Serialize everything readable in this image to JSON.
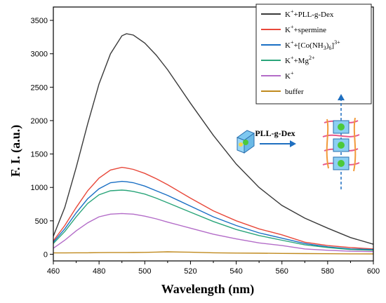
{
  "chart_data": {
    "type": "line",
    "xlabel": "Wavelength (nm)",
    "ylabel": "F. I. (a.u.)",
    "xlim": [
      460,
      600
    ],
    "ylim": [
      -100,
      3700
    ],
    "xticks": [
      460,
      480,
      500,
      520,
      540,
      560,
      580,
      600
    ],
    "yticks": [
      0,
      500,
      1000,
      1500,
      2000,
      2500,
      3000,
      3500
    ],
    "legend_position": "top-right",
    "x": [
      460,
      465,
      470,
      475,
      480,
      485,
      490,
      492,
      495,
      500,
      505,
      510,
      520,
      530,
      540,
      550,
      560,
      570,
      580,
      590,
      600
    ],
    "series": [
      {
        "legend_base": "K",
        "legend_sup1": "+",
        "legend_rest": "+PLL-g-Dex",
        "color": "#3a3a3a",
        "values": [
          270,
          700,
          1300,
          1950,
          2550,
          3000,
          3270,
          3300,
          3280,
          3160,
          2980,
          2760,
          2260,
          1780,
          1350,
          1000,
          730,
          540,
          390,
          250,
          150
        ]
      },
      {
        "legend_base": "K",
        "legend_sup1": "+",
        "legend_rest": "+spermine",
        "color": "#e8483a",
        "values": [
          200,
          430,
          700,
          950,
          1140,
          1260,
          1300,
          1290,
          1270,
          1210,
          1130,
          1040,
          840,
          650,
          500,
          380,
          290,
          180,
          130,
          100,
          80
        ]
      },
      {
        "legend_base": "K",
        "legend_sup1": "+",
        "legend_rest": "+[Co(NH",
        "legend_sub": "3",
        "legend_rest2": ")",
        "legend_sup_a": "6",
        "legend_rest3": "]",
        "legend_sup_b": "3+",
        "color": "#1a6fc4",
        "values": [
          180,
          380,
          620,
          830,
          980,
          1070,
          1090,
          1085,
          1070,
          1020,
          950,
          880,
          720,
          560,
          430,
          320,
          240,
          160,
          110,
          80,
          70
        ]
      },
      {
        "legend_base": "K",
        "legend_sup1": "+",
        "legend_rest": "+Mg",
        "legend_sup2": "2+",
        "color": "#2aa57a",
        "values": [
          160,
          340,
          560,
          760,
          890,
          950,
          960,
          955,
          940,
          900,
          840,
          770,
          630,
          490,
          370,
          280,
          210,
          140,
          100,
          70,
          60
        ]
      },
      {
        "legend_base": "K",
        "legend_sup1": "+",
        "legend_rest": "",
        "color": "#b36cc8",
        "values": [
          90,
          210,
          350,
          470,
          560,
          600,
          610,
          605,
          600,
          570,
          530,
          480,
          390,
          300,
          230,
          170,
          130,
          80,
          60,
          45,
          40
        ]
      },
      {
        "legend_base": "buffer",
        "legend_sup1": "",
        "legend_rest": "",
        "color": "#c08a1e",
        "values": [
          20,
          20,
          22,
          22,
          24,
          25,
          25,
          25,
          26,
          28,
          32,
          36,
          30,
          22,
          18,
          15,
          12,
          10,
          8,
          6,
          5
        ]
      }
    ]
  },
  "inset": {
    "label": "PLL-g-Dex",
    "arrow_color": "#1f6fc0"
  }
}
